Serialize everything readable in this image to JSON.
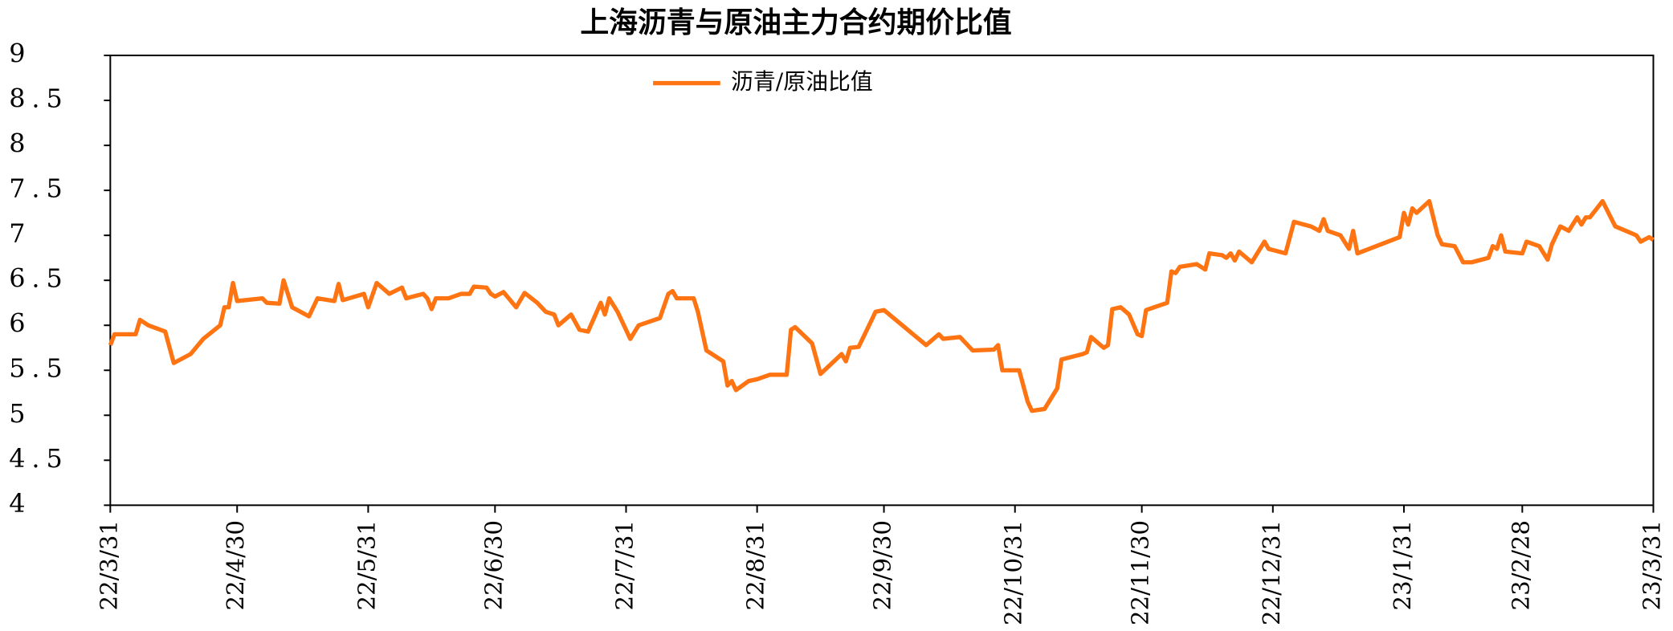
{
  "chart_data": {
    "type": "line",
    "title": "上海沥青与原油主力合约期价比值",
    "x": [
      "22/3/31",
      "22/4/1",
      "22/4/6",
      "22/4/7",
      "22/4/9",
      "22/4/13",
      "22/4/15",
      "22/4/19",
      "22/4/22",
      "22/4/26",
      "22/4/27",
      "22/4/28",
      "22/4/29",
      "22/4/30",
      "22/5/6",
      "22/5/7",
      "22/5/10",
      "22/5/11",
      "22/5/13",
      "22/5/17",
      "22/5/19",
      "22/5/23",
      "22/5/24",
      "22/5/25",
      "22/5/30",
      "22/5/31",
      "22/6/2",
      "22/6/5",
      "22/6/8",
      "22/6/9",
      "22/6/13",
      "22/6/14",
      "22/6/15",
      "22/6/16",
      "22/6/19",
      "22/6/22",
      "22/6/24",
      "22/6/25",
      "22/6/28",
      "22/6/29",
      "22/6/30",
      "22/7/2",
      "22/7/5",
      "22/7/7",
      "22/7/10",
      "22/7/12",
      "22/7/14",
      "22/7/15",
      "22/7/18",
      "22/7/20",
      "22/7/22",
      "22/7/25",
      "22/7/26",
      "22/7/27",
      "22/7/29",
      "22/8/1",
      "22/8/3",
      "22/8/8",
      "22/8/10",
      "22/8/11",
      "22/8/12",
      "22/8/16",
      "22/8/17",
      "22/8/19",
      "22/8/23",
      "22/8/24",
      "22/8/25",
      "22/8/26",
      "22/8/29",
      "22/8/31",
      "22/9/3",
      "22/9/7",
      "22/9/8",
      "22/9/9",
      "22/9/13",
      "22/9/15",
      "22/9/20",
      "22/9/21",
      "22/9/22",
      "22/9/24",
      "22/9/27",
      "22/9/28",
      "22/9/30",
      "22/10/10",
      "22/10/13",
      "22/10/14",
      "22/10/18",
      "22/10/21",
      "22/10/26",
      "22/10/27",
      "22/10/28",
      "22/10/31",
      "22/11/1",
      "22/11/3",
      "22/11/4",
      "22/11/7",
      "22/11/10",
      "22/11/11",
      "22/11/16",
      "22/11/17",
      "22/11/18",
      "22/11/21",
      "22/11/22",
      "22/11/23",
      "22/11/25",
      "22/11/27",
      "22/11/29",
      "22/11/30",
      "22/12/1",
      "22/12/6",
      "22/12/7",
      "22/12/8",
      "22/12/9",
      "22/12/13",
      "22/12/15",
      "22/12/16",
      "22/12/19",
      "22/12/20",
      "22/12/21",
      "22/12/22",
      "22/12/23",
      "22/12/26",
      "22/12/29",
      "22/12/30",
      "23/1/3",
      "23/1/5",
      "23/1/9",
      "23/1/11",
      "23/1/12",
      "23/1/13",
      "23/1/16",
      "23/1/18",
      "23/1/19",
      "23/1/20",
      "23/1/30",
      "23/1/31",
      "23/2/1",
      "23/2/2",
      "23/2/3",
      "23/2/6",
      "23/2/8",
      "23/2/9",
      "23/2/12",
      "23/2/14",
      "23/2/16",
      "23/2/20",
      "23/2/21",
      "23/2/22",
      "23/2/23",
      "23/2/24",
      "23/2/28",
      "23/3/1",
      "23/3/4",
      "23/3/6",
      "23/3/7",
      "23/3/9",
      "23/3/11",
      "23/3/13",
      "23/3/14",
      "23/3/15",
      "23/3/16",
      "23/3/19",
      "23/3/22",
      "23/3/27",
      "23/3/28",
      "23/3/30",
      "23/3/31"
    ],
    "series": [
      {
        "name": "沥青/原油比值",
        "color": "#ff7412",
        "values": [
          5.78,
          5.9,
          5.9,
          6.06,
          6.0,
          5.93,
          5.58,
          5.68,
          5.85,
          6.0,
          6.2,
          6.2,
          6.47,
          6.27,
          6.3,
          6.25,
          6.24,
          6.5,
          6.2,
          6.1,
          6.3,
          6.27,
          6.46,
          6.28,
          6.35,
          6.2,
          6.47,
          6.35,
          6.42,
          6.3,
          6.35,
          6.3,
          6.18,
          6.3,
          6.3,
          6.35,
          6.35,
          6.43,
          6.42,
          6.35,
          6.32,
          6.37,
          6.2,
          6.36,
          6.25,
          6.15,
          6.12,
          6.0,
          6.12,
          5.95,
          5.93,
          6.25,
          6.12,
          6.3,
          6.15,
          5.85,
          6.0,
          6.08,
          6.35,
          6.38,
          6.3,
          6.3,
          6.15,
          5.72,
          5.6,
          5.33,
          5.38,
          5.28,
          5.38,
          5.4,
          5.45,
          5.45,
          5.95,
          5.98,
          5.8,
          5.46,
          5.68,
          5.6,
          5.75,
          5.76,
          6.05,
          6.15,
          6.17,
          5.78,
          5.9,
          5.85,
          5.87,
          5.72,
          5.73,
          5.78,
          5.5,
          5.5,
          5.5,
          5.15,
          5.05,
          5.07,
          5.3,
          5.62,
          5.68,
          5.7,
          5.87,
          5.75,
          5.78,
          6.18,
          6.2,
          6.12,
          5.9,
          5.88,
          6.17,
          6.25,
          6.6,
          6.58,
          6.65,
          6.68,
          6.62,
          6.8,
          6.78,
          6.75,
          6.8,
          6.72,
          6.82,
          6.7,
          6.93,
          6.85,
          6.8,
          7.15,
          7.1,
          7.05,
          7.18,
          7.05,
          7.0,
          6.85,
          7.05,
          6.8,
          6.98,
          7.25,
          7.12,
          7.3,
          7.25,
          7.38,
          7.0,
          6.9,
          6.88,
          6.7,
          6.7,
          6.75,
          6.88,
          6.85,
          7.0,
          6.82,
          6.8,
          6.93,
          6.88,
          6.73,
          6.9,
          7.1,
          7.05,
          7.2,
          7.12,
          7.2,
          7.2,
          7.38,
          7.1,
          7.0,
          6.93,
          6.98,
          6.95
        ]
      }
    ],
    "xlim": [
      "22/3/31",
      "23/3/31"
    ],
    "xticks": [
      "22/3/31",
      "22/4/30",
      "22/5/31",
      "22/6/30",
      "22/7/31",
      "22/8/31",
      "22/9/30",
      "22/10/31",
      "22/11/30",
      "22/12/31",
      "23/1/31",
      "23/2/28",
      "23/3/31"
    ],
    "ylim": [
      4,
      9
    ],
    "yticks": [
      4,
      4.5,
      5,
      5.5,
      6,
      6.5,
      7,
      7.5,
      8,
      8.5,
      9
    ],
    "legend": "top"
  }
}
